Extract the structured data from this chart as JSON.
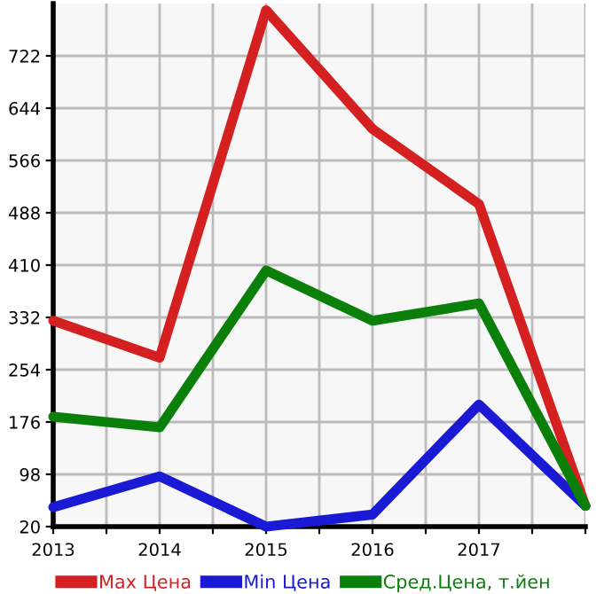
{
  "chart_data": {
    "type": "line",
    "x": [
      2013,
      2014,
      2015,
      2016,
      2017,
      2018
    ],
    "series": [
      {
        "name": "Max Цена",
        "color": "#d42020",
        "values": [
          327,
          272,
          790,
          613,
          501,
          51
        ]
      },
      {
        "name": "Min Цена",
        "color": "#1a1ad4",
        "values": [
          49,
          95,
          20,
          38,
          202,
          51
        ]
      },
      {
        "name": "Сред.Цена, т.йен",
        "color": "#0a800a",
        "values": [
          184,
          168,
          402,
          327,
          353,
          51
        ]
      }
    ],
    "xlim": [
      2013,
      2018
    ],
    "xticks": [
      2013,
      {
        "value": 2013.5,
        "label": null
      },
      2014,
      {
        "value": 2014.5,
        "label": null
      },
      2015,
      {
        "value": 2015.5,
        "label": null
      },
      2016,
      {
        "value": 2016.5,
        "label": null
      },
      2017,
      {
        "value": 2017.5,
        "label": null
      },
      {
        "value": 2018,
        "label": null
      }
    ],
    "ylim": [
      20,
      800
    ],
    "yticks": [
      20,
      98,
      176,
      254,
      332,
      410,
      488,
      566,
      644,
      722
    ],
    "grid": true,
    "legend": "bottom",
    "marker": "none",
    "line_style": "solid"
  }
}
